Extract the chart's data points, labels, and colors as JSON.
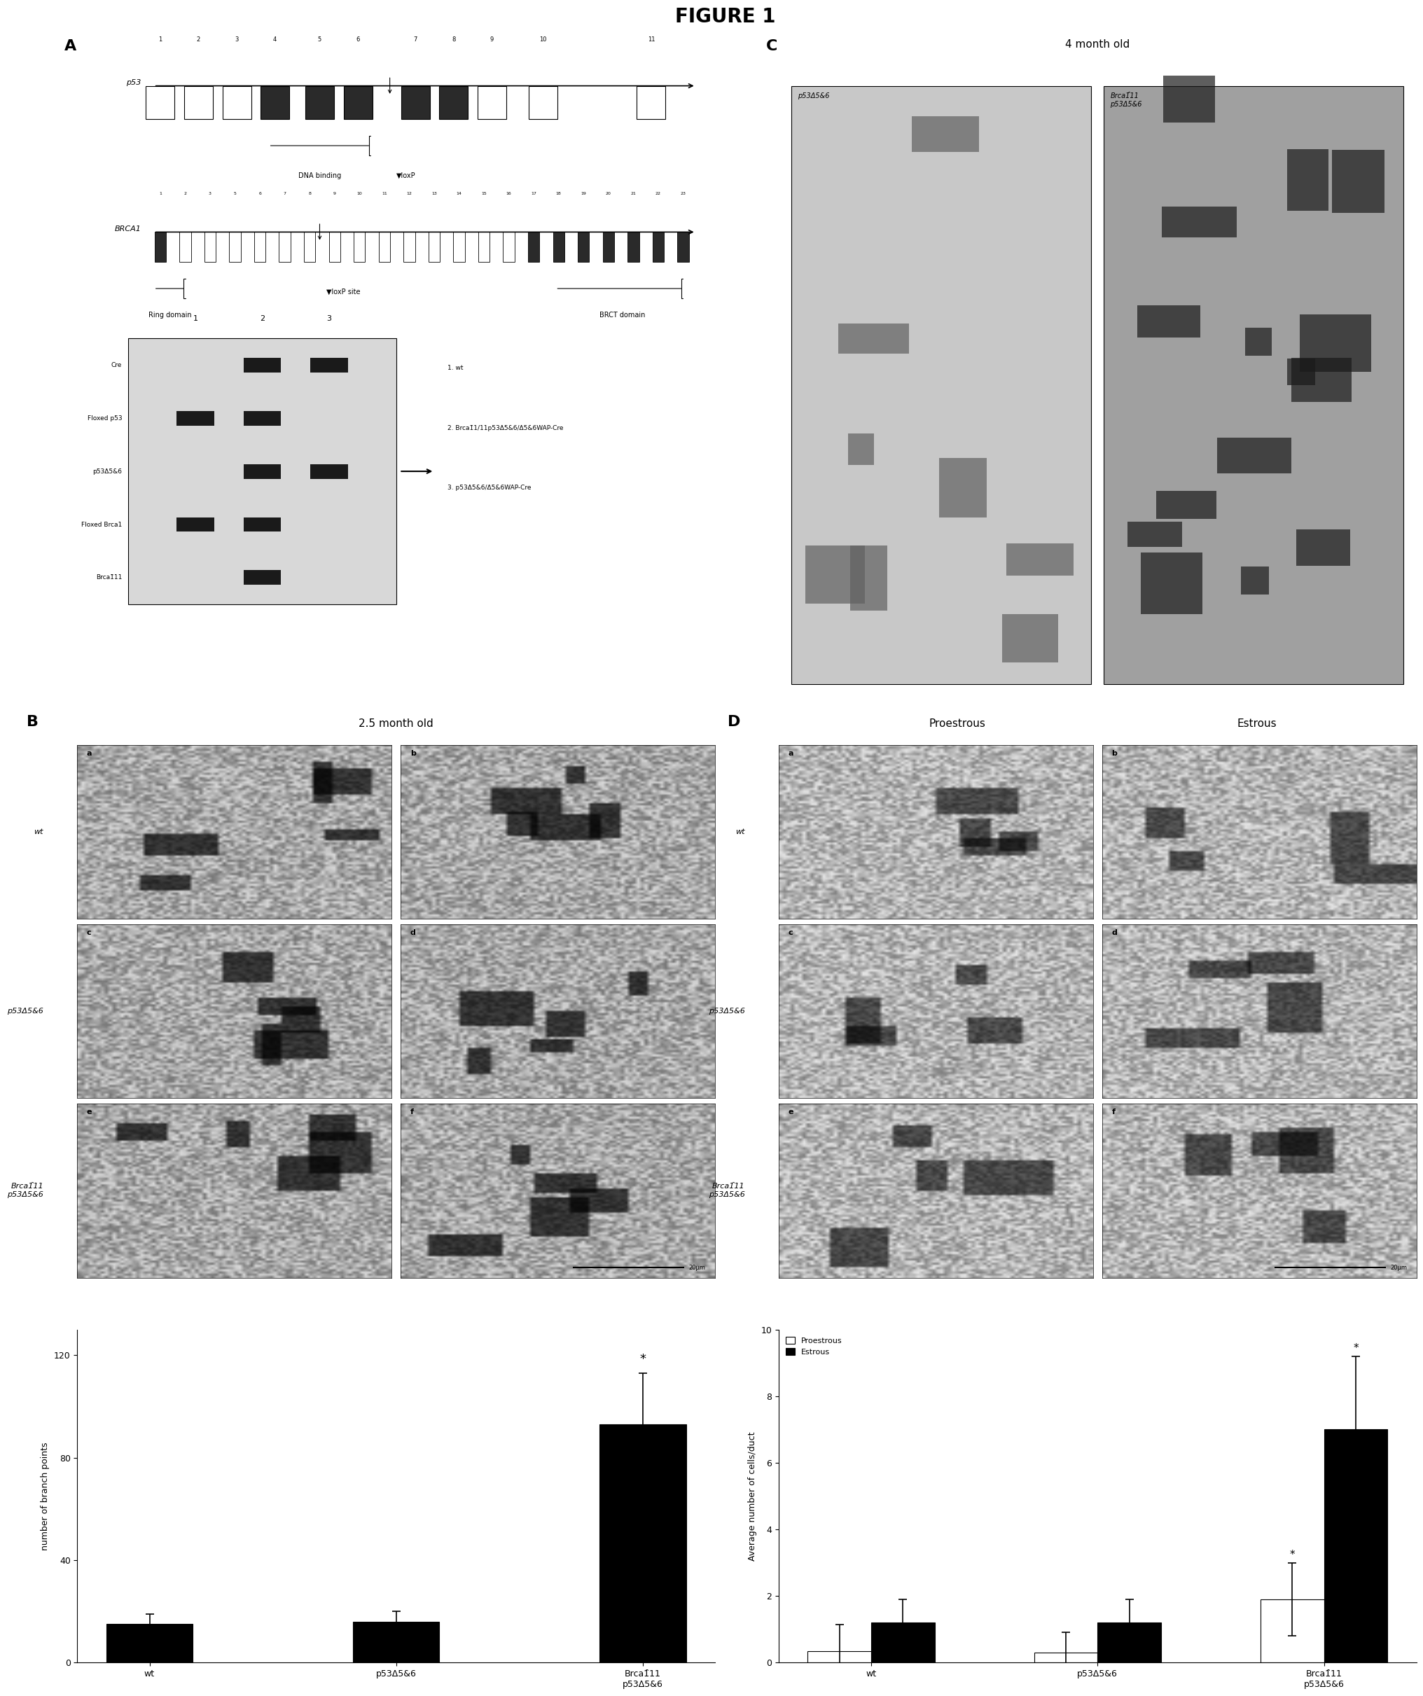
{
  "title": "FIGURE 1",
  "title_fontsize": 20,
  "title_fontweight": "bold",
  "panel_A_label": "A",
  "panel_B_label": "B",
  "panel_C_label": "C",
  "panel_D_label": "D",
  "gel_labels_left": [
    "Cre",
    "Floxed p53",
    "p53Δ5&6",
    "Floxed Brca1",
    "Brca1̑11"
  ],
  "gel_lane_labels": [
    "1",
    "2",
    "3"
  ],
  "gel_note_1": "1. wt",
  "gel_note_2": "2. Brca1̑1/11p53Δ5&6/Δ5&6WAP-Cre",
  "gel_note_3": "3. p53Δ5&6/Δ5&6WAP-Cre",
  "panel_B_title": "2.5 month old",
  "panel_B_sublabels": [
    "a",
    "b",
    "c",
    "d",
    "e",
    "f"
  ],
  "panel_B_rowlabels": [
    "wt",
    "p53Δ5&6",
    "Brca1̑11\np53Δ5&6"
  ],
  "panel_C_title": "4 month old",
  "panel_C_sublabels_italic": [
    "p53Δ5&6",
    "Brca1̑11\np53Δ5&6"
  ],
  "panel_D_title_proestrous": "Proestrous",
  "panel_D_title_estrous": "Estrous",
  "panel_D_sublabels": [
    "a",
    "b",
    "c",
    "d",
    "e",
    "f"
  ],
  "panel_D_rowlabels": [
    "wt",
    "p53Δ5&6",
    "Brca1̑11\np53Δ5&6"
  ],
  "bar_chart_B_categories": [
    "wt",
    "p53Δ5&6",
    "Brca1̑11\np53Δ5&6"
  ],
  "bar_chart_B_values": [
    15,
    16,
    93
  ],
  "bar_chart_B_errors": [
    4,
    4,
    20
  ],
  "bar_chart_B_ylabel": "number of branch points",
  "bar_chart_B_ylim": [
    0,
    130
  ],
  "bar_chart_B_yticks": [
    0,
    40,
    80,
    120
  ],
  "bar_chart_B_color": "#000000",
  "bar_chart_B_star_bar": 2,
  "bar_chart_D_categories": [
    "wt",
    "p53Δ5&6",
    "Brca1̑11\np53Δ5&6"
  ],
  "bar_chart_D_proestrous": [
    0.35,
    0.3,
    1.9
  ],
  "bar_chart_D_estrous": [
    1.2,
    1.2,
    7.0
  ],
  "bar_chart_D_proestrous_errors": [
    0.8,
    0.6,
    1.1
  ],
  "bar_chart_D_estrous_errors": [
    0.7,
    0.7,
    2.2
  ],
  "bar_chart_D_ylabel": "Average number of cells/duct",
  "bar_chart_D_ylim": [
    0,
    10
  ],
  "bar_chart_D_yticks": [
    0,
    2,
    4,
    6,
    8,
    10
  ],
  "bar_chart_D_color_proestrous": "#ffffff",
  "bar_chart_D_color_estrous": "#000000",
  "bar_chart_D_legend_proestrous": "Proestrous",
  "bar_chart_D_legend_estrous": "Estrous",
  "bar_chart_D_star_proestrous_bar": 2,
  "bar_chart_D_star_estrous_bar": 2,
  "background_color": "#ffffff",
  "text_color": "#000000"
}
